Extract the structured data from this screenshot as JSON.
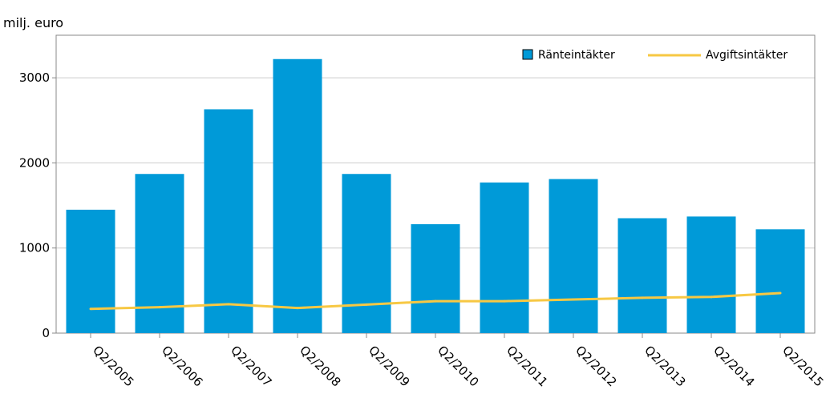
{
  "chart_data": {
    "type": "bar",
    "ylabel": "milj. euro",
    "categories": [
      "Q2/2005",
      "Q2/2006",
      "Q2/2007",
      "Q2/2008",
      "Q2/2009",
      "Q2/2010",
      "Q2/2011",
      "Q2/2012",
      "Q2/2013",
      "Q2/2014",
      "Q2/2015"
    ],
    "series": [
      {
        "name": "Ränteintäkter",
        "kind": "bar",
        "color": "#009ad8",
        "values": [
          1450,
          1870,
          2630,
          3220,
          1870,
          1280,
          1770,
          1810,
          1350,
          1370,
          1220
        ]
      },
      {
        "name": "Avgiftsintäkter",
        "kind": "line",
        "color": "#f7c843",
        "values": [
          285,
          305,
          340,
          295,
          335,
          375,
          375,
          395,
          415,
          425,
          470
        ]
      }
    ],
    "yticks": [
      0,
      1000,
      2000,
      3000
    ],
    "ylim": [
      0,
      3500
    ],
    "grid": true,
    "legend": "top-right"
  }
}
